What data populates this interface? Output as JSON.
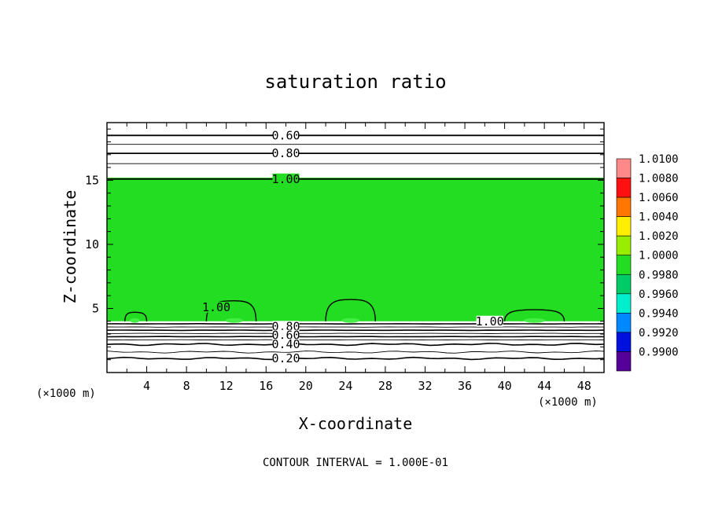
{
  "chart_data": {
    "type": "contour",
    "title": "saturation ratio",
    "xlabel": "X-coordinate",
    "ylabel": "Z-coordinate",
    "x_unit_left": "(×1000 m)",
    "x_unit_right": "(×1000 m)",
    "footer": "CONTOUR INTERVAL = 1.000E-01",
    "xlim": [
      0,
      50
    ],
    "ylim": [
      0,
      19.5
    ],
    "x_ticks": [
      4,
      8,
      12,
      16,
      20,
      24,
      28,
      32,
      36,
      40,
      44,
      48
    ],
    "x_tick_labels": [
      "4",
      "8",
      "12",
      "16",
      "20",
      "24",
      "28",
      "32",
      "36",
      "40",
      "44",
      "48"
    ],
    "y_ticks": [
      5,
      10,
      15
    ],
    "y_tick_labels": [
      "5",
      "10",
      "15"
    ],
    "fill_region": {
      "z_range": [
        4.0,
        15.2
      ],
      "value_range": [
        1.0,
        1.002
      ],
      "color": "#22dd22"
    },
    "upper_contours": [
      {
        "level": 0.6,
        "z": 18.5
      },
      {
        "level": 0.7,
        "z": 17.8
      },
      {
        "level": 0.8,
        "z": 17.1
      },
      {
        "level": 0.9,
        "z": 16.3
      },
      {
        "level": 1.0,
        "z": 15.1
      }
    ],
    "lower_contours": [
      {
        "level": 0.95,
        "z": 3.8
      },
      {
        "level": 0.9,
        "z": 3.55
      },
      {
        "level": 0.8,
        "z": 3.3
      },
      {
        "level": 0.7,
        "z": 3.05
      },
      {
        "level": 0.6,
        "z": 2.8
      },
      {
        "level": 0.5,
        "z": 2.55
      },
      {
        "level": 0.4,
        "z": 2.2
      },
      {
        "level": 0.3,
        "z": 1.6
      },
      {
        "level": 0.2,
        "z": 1.1
      }
    ],
    "contour_labels": [
      {
        "text": "0.60",
        "x": 18,
        "z": 18.5
      },
      {
        "text": "0.80",
        "x": 18,
        "z": 17.1
      },
      {
        "text": "1.00",
        "x": 18,
        "z": 15.1
      },
      {
        "text": "1.00",
        "x": 11,
        "z": 5.1
      },
      {
        "text": "1.00",
        "x": 38.5,
        "z": 4.0
      },
      {
        "text": "0.80",
        "x": 18,
        "z": 3.6
      },
      {
        "text": "0.60",
        "x": 18,
        "z": 2.9
      },
      {
        "text": "0.40",
        "x": 18,
        "z": 2.2
      },
      {
        "text": "0.20",
        "x": 18,
        "z": 1.1
      }
    ],
    "domes": [
      {
        "x_start": 1.8,
        "x_end": 4.0,
        "peak_x": 2.8,
        "peak_z": 4.7
      },
      {
        "x_start": 10.0,
        "x_end": 15.0,
        "peak_x": 12.8,
        "peak_z": 5.6
      },
      {
        "x_start": 22.0,
        "x_end": 27.0,
        "peak_x": 24.5,
        "peak_z": 5.7
      },
      {
        "x_start": 40.0,
        "x_end": 46.0,
        "peak_x": 43.0,
        "peak_z": 4.9
      }
    ],
    "colorbar": {
      "levels": [
        "1.0100",
        "1.0080",
        "1.0060",
        "1.0040",
        "1.0020",
        "1.0000",
        "0.9980",
        "0.9960",
        "0.9940",
        "0.9920",
        "0.9900"
      ],
      "colors": [
        "#ff8888",
        "#ff1111",
        "#ff7700",
        "#ffee00",
        "#99ee00",
        "#22dd22",
        "#00cc66",
        "#00eecc",
        "#0088ff",
        "#0011dd",
        "#550099"
      ]
    }
  }
}
